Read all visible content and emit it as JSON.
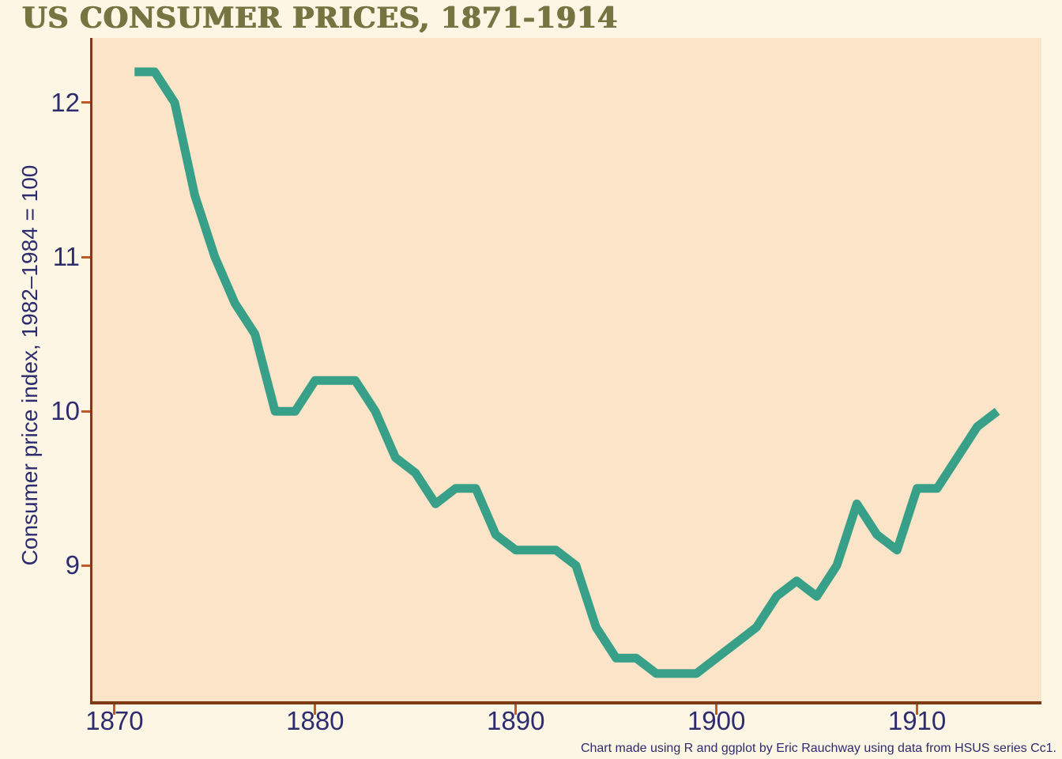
{
  "header": {
    "title": "US CONSUMER PRICES, 1871-1914"
  },
  "footer": {
    "caption": "Chart made using R and ggplot by Eric Rauchway using data from HSUS series Cc1."
  },
  "chart_data": {
    "type": "line",
    "title": "US CONSUMER PRICES, 1871-1914",
    "xlabel": "",
    "ylabel": "Consumer price index, 1982–1984 = 100",
    "x": [
      1871,
      1872,
      1873,
      1874,
      1875,
      1876,
      1877,
      1878,
      1879,
      1880,
      1881,
      1882,
      1883,
      1884,
      1885,
      1886,
      1887,
      1888,
      1889,
      1890,
      1891,
      1892,
      1893,
      1894,
      1895,
      1896,
      1897,
      1898,
      1899,
      1900,
      1901,
      1902,
      1903,
      1904,
      1905,
      1906,
      1907,
      1908,
      1909,
      1910,
      1911,
      1912,
      1913,
      1914
    ],
    "values": [
      12.2,
      12.2,
      12.0,
      11.4,
      11.0,
      10.7,
      10.5,
      10.0,
      10.0,
      10.2,
      10.2,
      10.2,
      10.0,
      9.7,
      9.6,
      9.4,
      9.5,
      9.5,
      9.2,
      9.1,
      9.1,
      9.1,
      9.0,
      8.6,
      8.4,
      8.4,
      8.3,
      8.3,
      8.3,
      8.4,
      8.5,
      8.6,
      8.8,
      8.9,
      8.8,
      9.0,
      9.4,
      9.2,
      9.1,
      9.5,
      9.5,
      9.7,
      9.9,
      10.0
    ],
    "xlim": [
      1868.9,
      1916.2
    ],
    "ylim": [
      8.12,
      12.42
    ],
    "x_ticks": [
      1870,
      1880,
      1890,
      1900,
      1910
    ],
    "y_ticks": [
      9,
      10,
      11,
      12
    ],
    "grid": false,
    "legend": "none",
    "line_width": 11
  },
  "colors": {
    "outer_bg": "#FDF6E5",
    "panel_bg": "#FCE4C8",
    "axis_line": "#7C3A15",
    "tick_mark": "#C05A26",
    "text_navy": "#2D2C6E",
    "title_olive": "#767441",
    "line_color": "#38A088"
  }
}
